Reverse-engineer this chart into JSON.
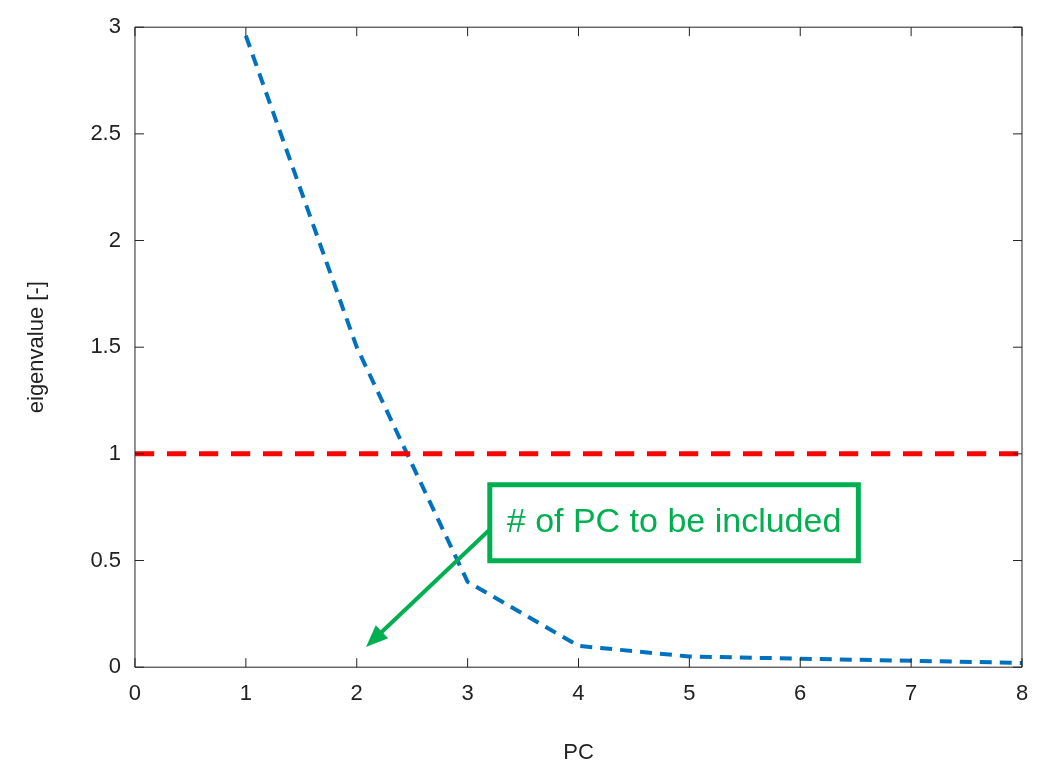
{
  "chart_data": {
    "type": "line",
    "xlabel": "PC",
    "ylabel": "eigenvalue [-]",
    "x": [
      1,
      2,
      3,
      4,
      5,
      6,
      7,
      8
    ],
    "series": [
      {
        "color": "#0072bd",
        "values": [
          2.96,
          1.5,
          0.4,
          0.1,
          0.05,
          0.04,
          0.03,
          0.02
        ]
      }
    ],
    "xlim": [
      0,
      8
    ],
    "xticks": [
      0,
      1,
      2,
      3,
      4,
      5,
      6,
      7,
      8
    ],
    "ylim": [
      0,
      3
    ],
    "yticks": [
      0,
      0.5,
      1,
      1.5,
      2,
      2.5,
      3
    ],
    "grid": false,
    "legend": false,
    "marker": "none",
    "line_style": "dashed",
    "ref_lines": [
      {
        "axis": "y",
        "value": 1,
        "color": "#ff0000",
        "line_style": "dashed"
      }
    ],
    "annotations": [
      "# of PC to be included"
    ]
  }
}
